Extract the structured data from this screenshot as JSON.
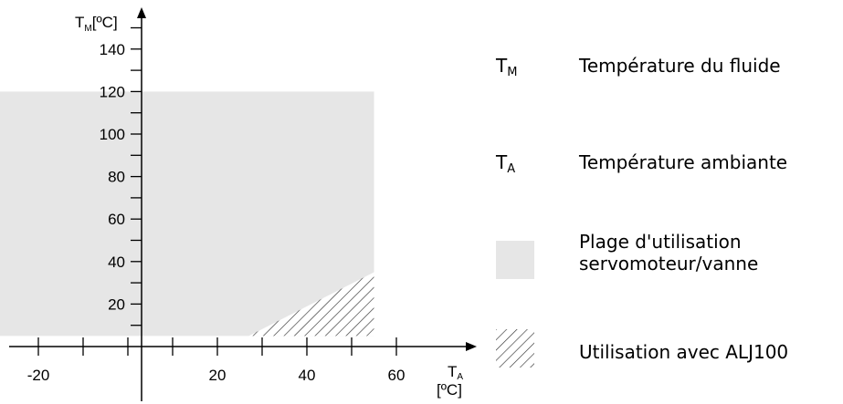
{
  "chart_data": {
    "type": "area",
    "x_axis": {
      "symbol": "T",
      "subscript": "A",
      "unit": "[ºC]",
      "tick_labels": [
        "-20",
        "20",
        "40",
        "60"
      ],
      "range": [
        -32,
        68
      ]
    },
    "y_axis": {
      "symbol": "T",
      "subscript": "M",
      "unit": "[ºC]",
      "tick_labels": [
        "20",
        "40",
        "60",
        "80",
        "100",
        "120",
        "140"
      ],
      "range": [
        -2,
        158
      ]
    },
    "regions": [
      {
        "name": "plage-utilisation",
        "color": "#e6e6e6",
        "polygon": [
          [
            -30,
            5
          ],
          [
            55,
            5
          ],
          [
            55,
            120
          ],
          [
            -30,
            120
          ]
        ]
      },
      {
        "name": "utilisation-alj100",
        "pattern": "diagonal-hatch",
        "polygon": [
          [
            27,
            5
          ],
          [
            55,
            5
          ],
          [
            55,
            35
          ]
        ]
      }
    ]
  },
  "legend": {
    "items": [
      {
        "symbol": "T",
        "subscript": "M",
        "text": "Température du fluide"
      },
      {
        "symbol": "T",
        "subscript": "A",
        "text": "Température ambiante"
      },
      {
        "swatch": "fill",
        "text_lines": [
          "Plage d'utilisation",
          "servomoteur/vanne"
        ]
      },
      {
        "swatch": "hatch",
        "text": "Utilisation avec ALJ100"
      }
    ]
  },
  "colors": {
    "fill": "#e6e6e6",
    "stroke": "#000000"
  }
}
